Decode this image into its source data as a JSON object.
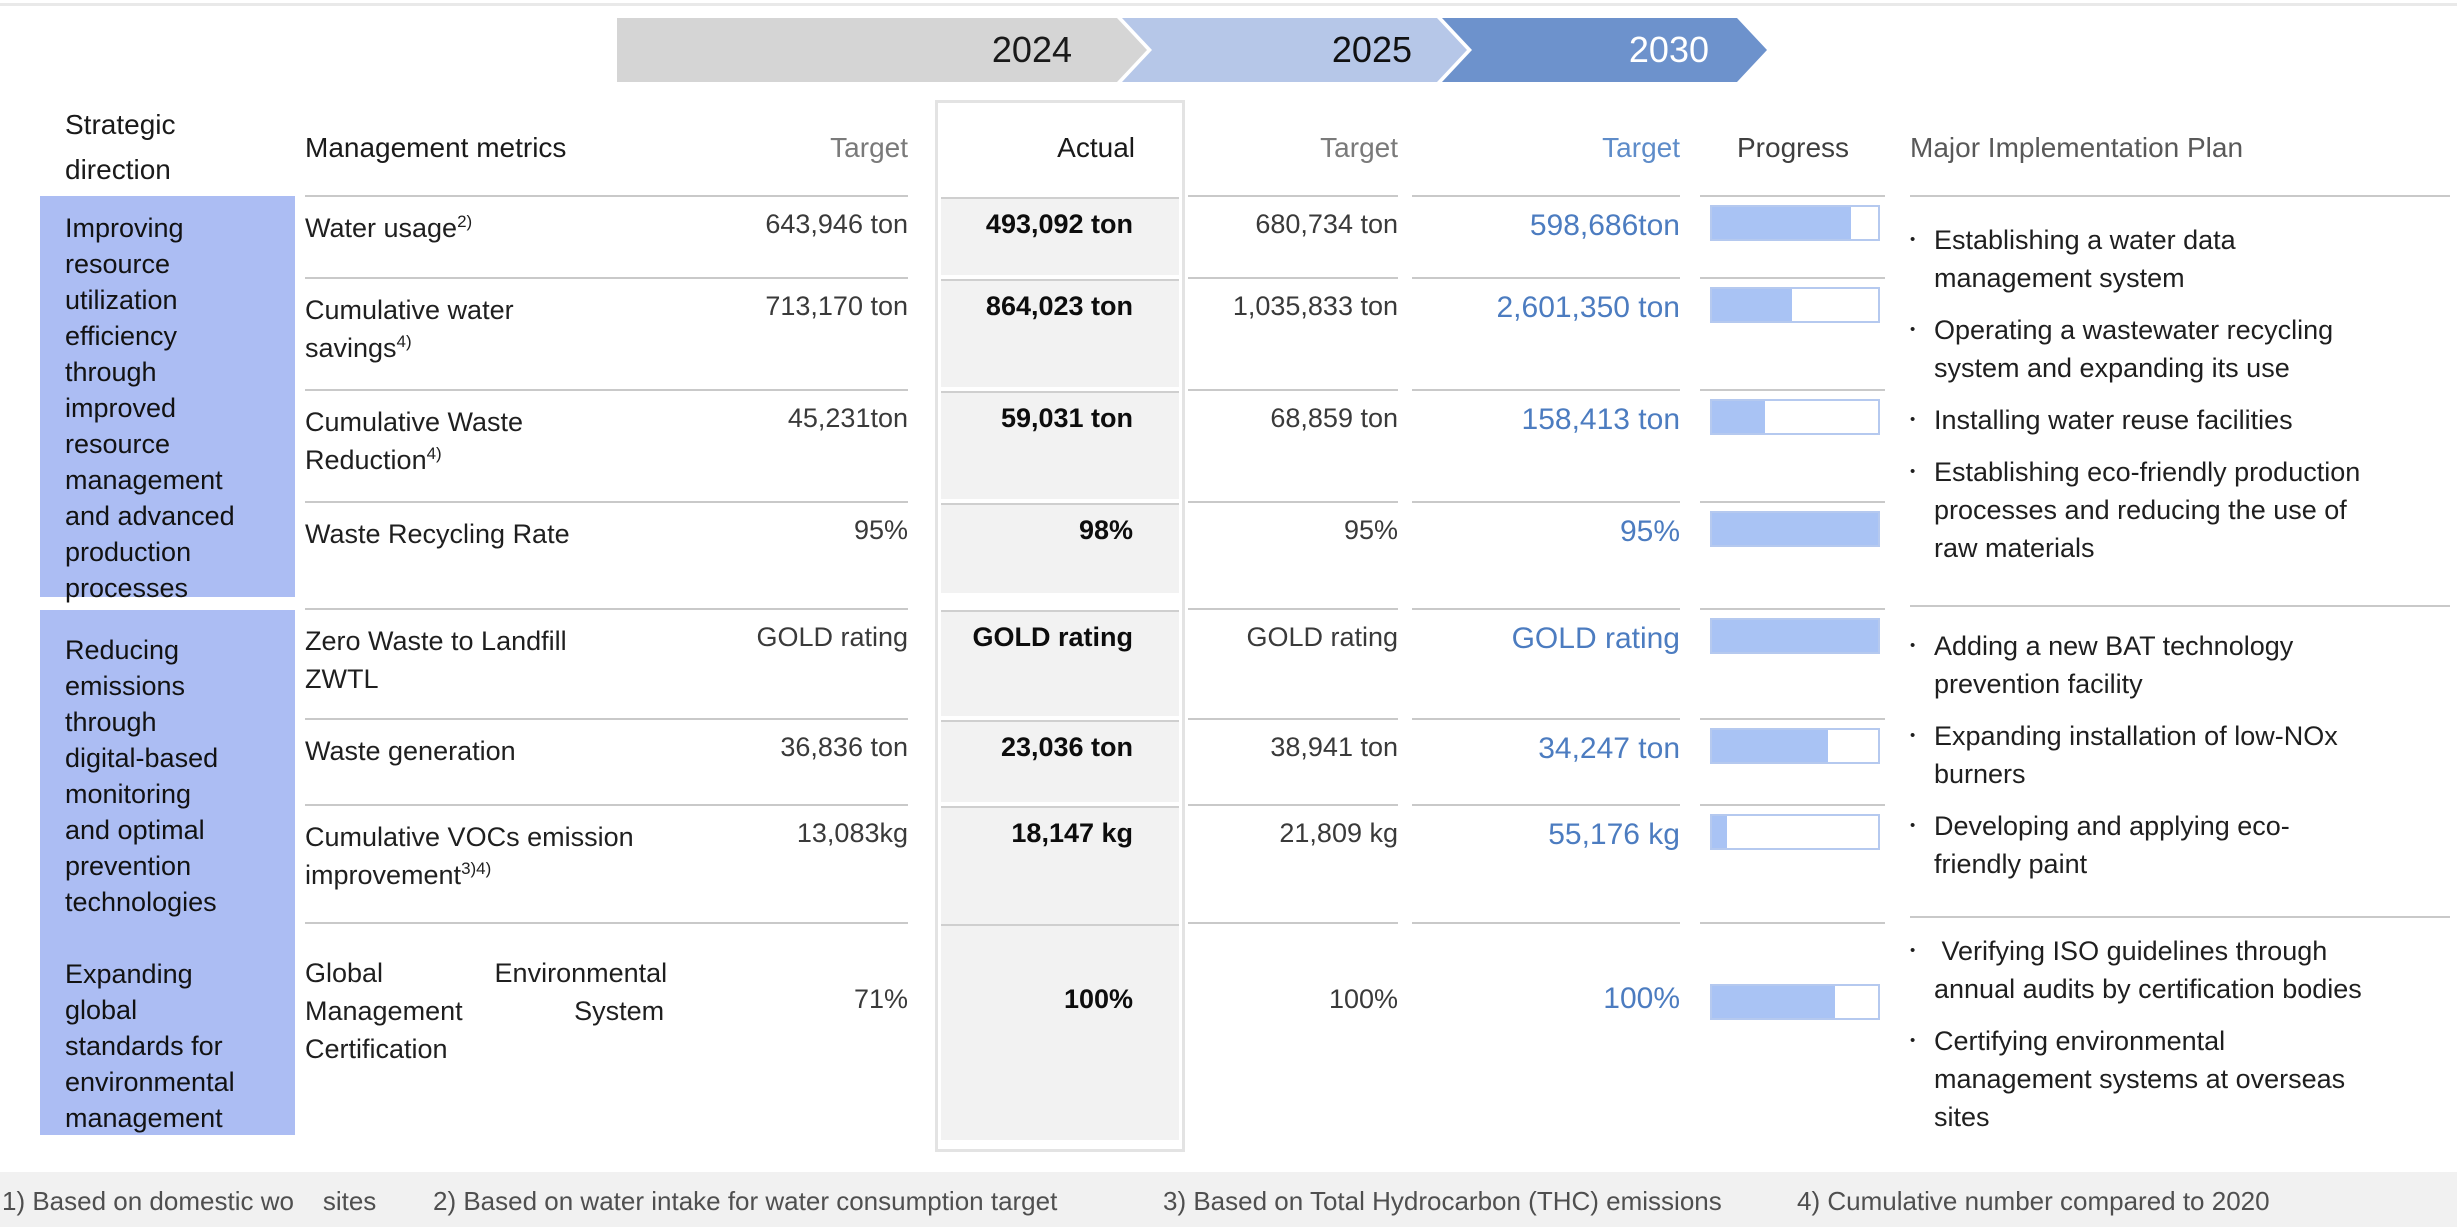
{
  "timeline": {
    "years": [
      "2024",
      "2025",
      "2030"
    ]
  },
  "header": {
    "strategic_direction": "Strategic\ndirection",
    "management_metrics": "Management metrics",
    "target_2024": "Target",
    "actual": "Actual",
    "target_2025": "Target",
    "target_2030": "Target",
    "progress": "Progress",
    "plan": "Major Implementation Plan"
  },
  "groups": [
    {
      "direction": "Improving\nresource\nutilization\nefficiency\nthrough\nimproved\nresource\nmanagement\nand advanced\nproduction\nprocesses",
      "rows": [
        {
          "metric": "Water usage",
          "metric_sup": "2)",
          "t2024": "643,946 ton",
          "actual": "493,092 ton",
          "t2025": "680,734 ton",
          "t2030": "598,686ton",
          "progress_pct": 84
        },
        {
          "metric": "Cumulative water\nsavings",
          "metric_sup": "4)",
          "t2024": "713,170 ton",
          "actual": "864,023 ton",
          "t2025": "1,035,833 ton",
          "t2030": "2,601,350 ton",
          "progress_pct": 48
        },
        {
          "metric": "Cumulative Waste\nReduction",
          "metric_sup": "4)",
          "t2024": "45,231ton",
          "actual": "59,031 ton",
          "t2025": "68,859 ton",
          "t2030": "158,413 ton",
          "progress_pct": 32
        },
        {
          "metric": "Waste Recycling Rate",
          "metric_sup": "",
          "t2024": "95%",
          "actual": "98%",
          "t2025": "95%",
          "t2030": "95%",
          "progress_pct": 100
        }
      ],
      "plan_items": [
        "Establishing a water data\nmanagement system",
        "Operating a wastewater recycling\nsystem and expanding its use",
        "Installing water reuse facilities",
        "Establishing eco-friendly production\nprocesses and reducing the use of\nraw materials"
      ]
    },
    {
      "direction": "Reducing\nemissions\nthrough\ndigital-based\nmonitoring\nand optimal\nprevention\ntechnologies",
      "rows": [
        {
          "metric": "Zero Waste to Landfill\nZWTL",
          "metric_sup": "",
          "t2024": "GOLD rating",
          "actual": "GOLD rating",
          "t2025": "GOLD rating",
          "t2030": "GOLD rating",
          "progress_pct": 100
        },
        {
          "metric": "Waste generation",
          "metric_sup": "",
          "t2024": "36,836 ton",
          "actual": "23,036 ton",
          "t2025": "38,941 ton",
          "t2030": "34,247 ton",
          "progress_pct": 70
        },
        {
          "metric": "Cumulative VOCs emission\nimprovement",
          "metric_sup": "3)4)",
          "t2024": "13,083kg",
          "actual": "18,147 kg",
          "t2025": "21,809 kg",
          "t2030": "55,176 kg",
          "progress_pct": 9
        }
      ],
      "plan_items": [
        "Adding a new BAT technology\nprevention facility",
        "Expanding installation of low-NOx\nburners",
        "Developing and applying eco-\nfriendly paint"
      ]
    },
    {
      "direction": "Expanding\nglobal\nstandards for\nenvironmental\nmanagement",
      "rows": [
        {
          "metric": "Global Environmental\nManagement System\nCertification",
          "metric_sup": "",
          "t2024": "71%",
          "actual": "100%",
          "t2025": "100%",
          "t2030": "100%",
          "progress_pct": 74
        }
      ],
      "plan_items": [
        " Verifying ISO guidelines through\nannual audits by certification bodies",
        "Certifying environmental\nmanagement systems at overseas\nsites"
      ]
    }
  ],
  "footnotes": [
    "1) Based on domestic wo    sites",
    "2) Based on water intake for water consumption target",
    "3) Based on Total Hydrocarbon (THC) emissions",
    "4) Cumulative number compared to 2020"
  ],
  "colors": {
    "accent_blue_text": "#4c7cc0",
    "progress_fill": "#a9c3f4",
    "direction_bg": "#acbdf3",
    "arrow_2024": "#d5d5d5",
    "arrow_2025": "#b6c7e8",
    "arrow_2030": "#6d92cc",
    "actual_cell_bg": "#f2f2f2",
    "footband_bg": "#f1f1f1"
  }
}
